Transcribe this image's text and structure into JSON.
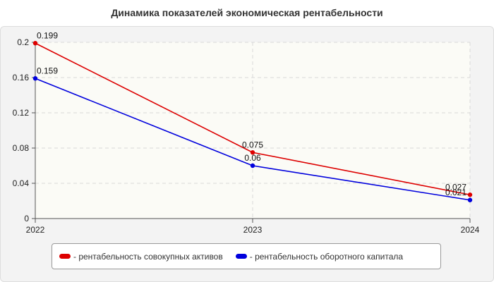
{
  "chart_data": {
    "type": "line",
    "title": "Динамика показателей экономическая рентабельности",
    "xlabel": "",
    "ylabel": "",
    "categories": [
      "2022",
      "2023",
      "2024"
    ],
    "ylim": [
      0,
      0.2
    ],
    "yticks": [
      "0",
      "0.04",
      "0.08",
      "0.12",
      "0.16",
      "0.2"
    ],
    "grid": true,
    "legend_position": "bottom",
    "series": [
      {
        "name": "- рентабельность совокупных активов",
        "color": "#dd0000",
        "values": [
          0.199,
          0.075,
          0.027
        ],
        "labels": [
          "0.199",
          "0.075",
          "0.027"
        ]
      },
      {
        "name": "- рентабельность оборотного капитала",
        "color": "#0000dd",
        "values": [
          0.159,
          0.06,
          0.021
        ],
        "labels": [
          "0.159",
          "0.06",
          "0.021"
        ]
      }
    ]
  }
}
